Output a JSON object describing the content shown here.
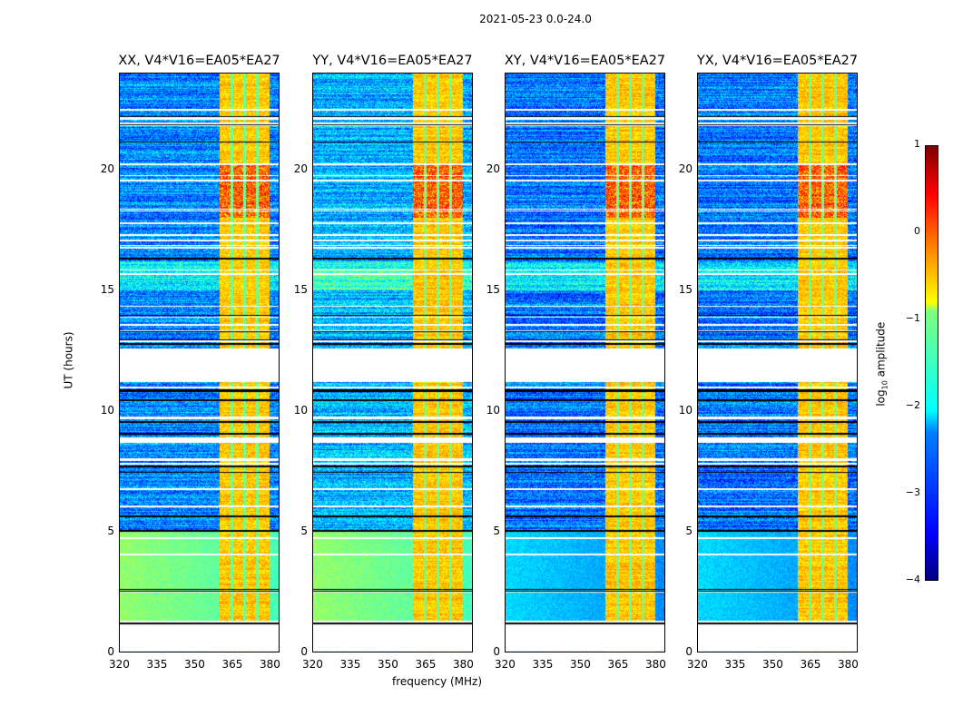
{
  "chart_data": {
    "type": "heatmap",
    "title": "2021-05-23 0.0-24.0",
    "xlabel": "frequency (MHz)",
    "ylabel": "UT (hours)",
    "xlim": [
      320,
      384
    ],
    "ylim": [
      0,
      24
    ],
    "xticks": [
      "320",
      "335",
      "350",
      "365",
      "380"
    ],
    "yticks": [
      "0",
      "5",
      "10",
      "15",
      "20"
    ],
    "panels": [
      {
        "title": "XX, V4*V16=EA05*EA27",
        "background": -2.7,
        "low_band_level": -1.4
      },
      {
        "title": "YY, V4*V16=EA05*EA27",
        "background": -2.5,
        "low_band_level": -1.4
      },
      {
        "title": "XY, V4*V16=EA05*EA27",
        "background": -2.8,
        "low_band_level": -2.3
      },
      {
        "title": "YX, V4*V16=EA05*EA27",
        "background": -2.8,
        "low_band_level": -2.3
      }
    ],
    "rfi_band_mhz": [
      360,
      380
    ],
    "rfi_level": -0.6,
    "flagged_gaps_hours": [
      [
        0.05,
        1.2
      ],
      [
        11.2,
        12.6
      ]
    ],
    "colorbar": {
      "label": "log10 amplitude",
      "label_main": "log",
      "label_sub": "10",
      "label_rest": " amplitude",
      "range": [
        -4,
        1
      ],
      "ticks": [
        "1",
        "0",
        "−1",
        "−2",
        "−3",
        "−4"
      ],
      "colormap": "jet"
    }
  }
}
